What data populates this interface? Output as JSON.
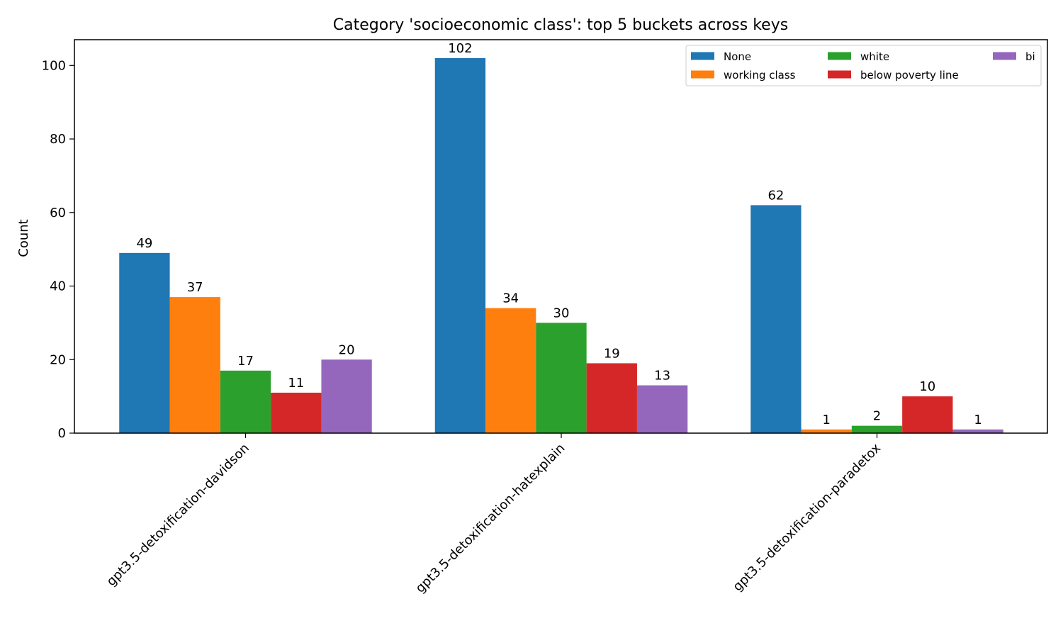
{
  "chart_data": {
    "type": "bar",
    "title": "Category 'socioeconomic class': top 5 buckets across keys",
    "xlabel": "",
    "ylabel": "Count",
    "categories": [
      "gpt3.5-detoxification-davidson",
      "gpt3.5-detoxification-hatexplain",
      "gpt3.5-detoxification-paradetox"
    ],
    "series": [
      {
        "name": "None",
        "values": [
          49,
          102,
          62
        ],
        "color": "#1f77b4"
      },
      {
        "name": "working class",
        "values": [
          37,
          34,
          1
        ],
        "color": "#ff7f0e"
      },
      {
        "name": "white",
        "values": [
          17,
          30,
          2
        ],
        "color": "#2ca02c"
      },
      {
        "name": "below poverty line",
        "values": [
          11,
          19,
          10
        ],
        "color": "#d62728"
      },
      {
        "name": "bi",
        "values": [
          20,
          13,
          1
        ],
        "color": "#9467bd"
      }
    ],
    "ylim": [
      0,
      107
    ],
    "yticks": [
      0,
      20,
      40,
      60,
      80,
      100
    ],
    "grid": false,
    "legend": "top-right, 3 columns"
  }
}
